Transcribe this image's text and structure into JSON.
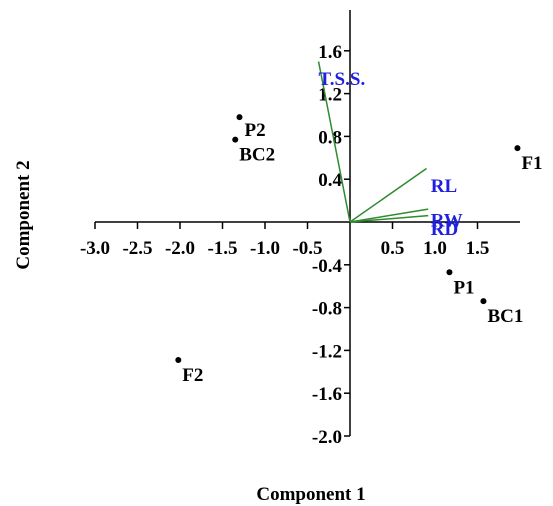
{
  "chart_data": {
    "type": "scatter",
    "subtype": "biplot",
    "xlabel": "Component 1",
    "ylabel": "Component 2",
    "xlim": [
      -3.0,
      2.0
    ],
    "ylim": [
      -2.0,
      2.0
    ],
    "xticks": [
      -3.0,
      -2.5,
      -2.0,
      -1.5,
      -1.0,
      -0.5,
      0.5,
      1.0,
      1.5
    ],
    "xtick_labels": [
      "-3.0",
      "-2.5",
      "-2.0",
      "-1.5",
      "-1.0",
      "-0.5",
      "0.5",
      "1.0",
      "1.5"
    ],
    "yticks": [
      1.6,
      1.2,
      0.8,
      0.4,
      -0.4,
      -0.8,
      -1.2,
      -1.6,
      -2.0
    ],
    "ytick_labels": [
      "1.6",
      "1.2",
      "0.8",
      "0.4",
      "-0.4",
      "-0.8",
      "-1.2",
      "-1.6",
      "-2.0"
    ],
    "points": [
      {
        "label": "F1",
        "x": 1.97,
        "y": 0.69
      },
      {
        "label": "P2",
        "x": -1.3,
        "y": 0.98
      },
      {
        "label": "BC2",
        "x": -1.35,
        "y": 0.77
      },
      {
        "label": "P1",
        "x": 1.17,
        "y": -0.47
      },
      {
        "label": "BC1",
        "x": 1.57,
        "y": -0.74
      },
      {
        "label": "F2",
        "x": -2.02,
        "y": -1.29
      }
    ],
    "vectors": [
      {
        "label": "T.S.S.",
        "x": -0.37,
        "y": 1.5
      },
      {
        "label": "RL",
        "x": 0.9,
        "y": 0.5
      },
      {
        "label": "RW",
        "x": 0.92,
        "y": 0.12
      },
      {
        "label": "RD",
        "x": 0.92,
        "y": 0.06
      }
    ],
    "grid": false,
    "colors": {
      "points": "#000000",
      "vectors": "#2e8b2e",
      "vector_labels": "#1f1fe0",
      "axes": "#000000"
    }
  }
}
